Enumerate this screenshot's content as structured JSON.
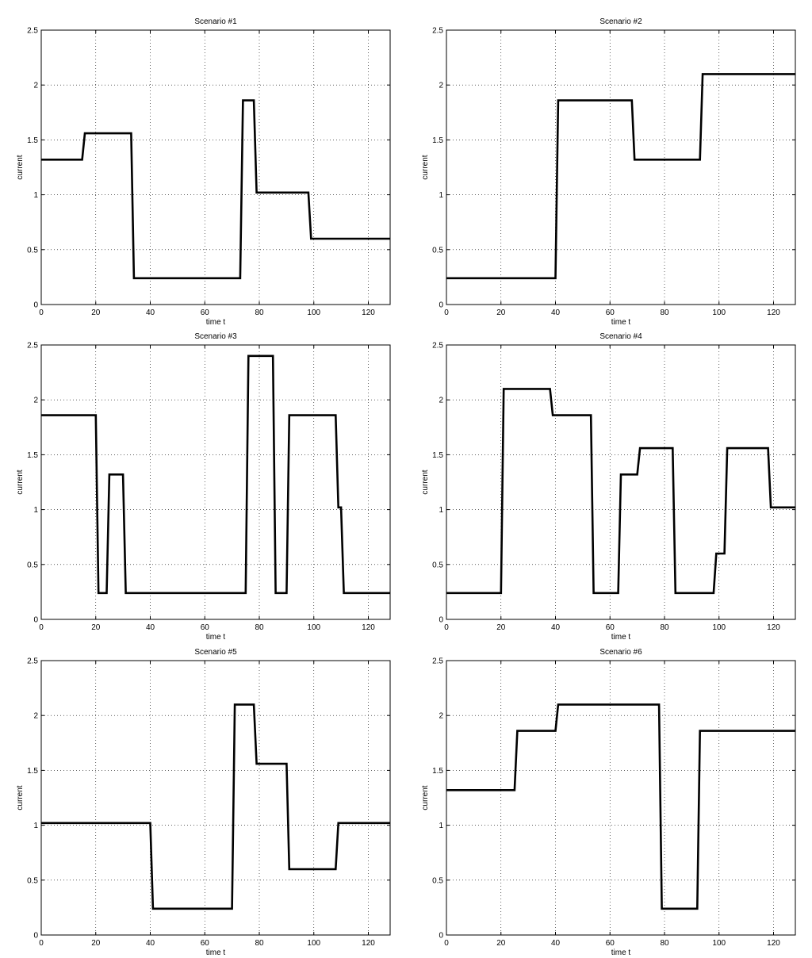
{
  "chart_data": [
    {
      "type": "line",
      "title": "Scenario #1",
      "xlabel": "time t",
      "ylabel": "current",
      "xlim": [
        0,
        128
      ],
      "ylim": [
        0,
        2.5
      ],
      "xticks": [
        0,
        20,
        40,
        60,
        80,
        100,
        120
      ],
      "yticks": [
        0,
        0.5,
        1,
        1.5,
        2,
        2.5
      ],
      "grid": true,
      "series": [
        {
          "points": [
            [
              0,
              1.32
            ],
            [
              15,
              1.32
            ],
            [
              16,
              1.56
            ],
            [
              33,
              1.56
            ],
            [
              34,
              0.24
            ],
            [
              73,
              0.24
            ],
            [
              74,
              1.86
            ],
            [
              78,
              1.86
            ],
            [
              79,
              1.02
            ],
            [
              98,
              1.02
            ],
            [
              99,
              0.6
            ],
            [
              128,
              0.6
            ]
          ]
        }
      ]
    },
    {
      "type": "line",
      "title": "Scenario #2",
      "xlabel": "time t",
      "ylabel": "current",
      "xlim": [
        0,
        128
      ],
      "ylim": [
        0,
        2.5
      ],
      "xticks": [
        0,
        20,
        40,
        60,
        80,
        100,
        120
      ],
      "yticks": [
        0,
        0.5,
        1,
        1.5,
        2,
        2.5
      ],
      "grid": true,
      "series": [
        {
          "points": [
            [
              0,
              0.24
            ],
            [
              40,
              0.24
            ],
            [
              41,
              1.86
            ],
            [
              68,
              1.86
            ],
            [
              69,
              1.32
            ],
            [
              93,
              1.32
            ],
            [
              94,
              2.1
            ],
            [
              128,
              2.1
            ]
          ]
        }
      ]
    },
    {
      "type": "line",
      "title": "Scenario #3",
      "xlabel": "time t",
      "ylabel": "current",
      "xlim": [
        0,
        128
      ],
      "ylim": [
        0,
        2.5
      ],
      "xticks": [
        0,
        20,
        40,
        60,
        80,
        100,
        120
      ],
      "yticks": [
        0,
        0.5,
        1,
        1.5,
        2,
        2.5
      ],
      "grid": true,
      "series": [
        {
          "points": [
            [
              0,
              1.86
            ],
            [
              20,
              1.86
            ],
            [
              21,
              0.24
            ],
            [
              24,
              0.24
            ],
            [
              25,
              1.32
            ],
            [
              30,
              1.32
            ],
            [
              31,
              0.24
            ],
            [
              75,
              0.24
            ],
            [
              76,
              2.4
            ],
            [
              85,
              2.4
            ],
            [
              86,
              0.24
            ],
            [
              90,
              0.24
            ],
            [
              91,
              1.86
            ],
            [
              108,
              1.86
            ],
            [
              109,
              1.02
            ],
            [
              110,
              1.02
            ],
            [
              111,
              0.24
            ],
            [
              128,
              0.24
            ]
          ]
        }
      ]
    },
    {
      "type": "line",
      "title": "Scenario #4",
      "xlabel": "time t",
      "ylabel": "current",
      "xlim": [
        0,
        128
      ],
      "ylim": [
        0,
        2.5
      ],
      "xticks": [
        0,
        20,
        40,
        60,
        80,
        100,
        120
      ],
      "yticks": [
        0,
        0.5,
        1,
        1.5,
        2,
        2.5
      ],
      "grid": true,
      "series": [
        {
          "points": [
            [
              0,
              0.24
            ],
            [
              20,
              0.24
            ],
            [
              21,
              2.1
            ],
            [
              38,
              2.1
            ],
            [
              39,
              1.86
            ],
            [
              53,
              1.86
            ],
            [
              54,
              0.24
            ],
            [
              63,
              0.24
            ],
            [
              64,
              1.32
            ],
            [
              70,
              1.32
            ],
            [
              71,
              1.56
            ],
            [
              83,
              1.56
            ],
            [
              84,
              0.24
            ],
            [
              98,
              0.24
            ],
            [
              99,
              0.6
            ],
            [
              102,
              0.6
            ],
            [
              103,
              1.56
            ],
            [
              118,
              1.56
            ],
            [
              119,
              1.02
            ],
            [
              128,
              1.02
            ]
          ]
        }
      ]
    },
    {
      "type": "line",
      "title": "Scenario #5",
      "xlabel": "time t",
      "ylabel": "current",
      "xlim": [
        0,
        128
      ],
      "ylim": [
        0,
        2.5
      ],
      "xticks": [
        0,
        20,
        40,
        60,
        80,
        100,
        120
      ],
      "yticks": [
        0,
        0.5,
        1,
        1.5,
        2,
        2.5
      ],
      "grid": true,
      "series": [
        {
          "points": [
            [
              0,
              1.02
            ],
            [
              40,
              1.02
            ],
            [
              41,
              0.24
            ],
            [
              70,
              0.24
            ],
            [
              71,
              2.1
            ],
            [
              78,
              2.1
            ],
            [
              79,
              1.56
            ],
            [
              90,
              1.56
            ],
            [
              91,
              0.6
            ],
            [
              108,
              0.6
            ],
            [
              109,
              1.02
            ],
            [
              128,
              1.02
            ]
          ]
        }
      ]
    },
    {
      "type": "line",
      "title": "Scenario #6",
      "xlabel": "time t",
      "ylabel": "current",
      "xlim": [
        0,
        128
      ],
      "ylim": [
        0,
        2.5
      ],
      "xticks": [
        0,
        20,
        40,
        60,
        80,
        100,
        120
      ],
      "yticks": [
        0,
        0.5,
        1,
        1.5,
        2,
        2.5
      ],
      "grid": true,
      "series": [
        {
          "points": [
            [
              0,
              1.32
            ],
            [
              25,
              1.32
            ],
            [
              26,
              1.86
            ],
            [
              40,
              1.86
            ],
            [
              41,
              2.1
            ],
            [
              78,
              2.1
            ],
            [
              79,
              0.24
            ],
            [
              92,
              0.24
            ],
            [
              93,
              1.86
            ],
            [
              128,
              1.86
            ]
          ]
        }
      ]
    }
  ]
}
